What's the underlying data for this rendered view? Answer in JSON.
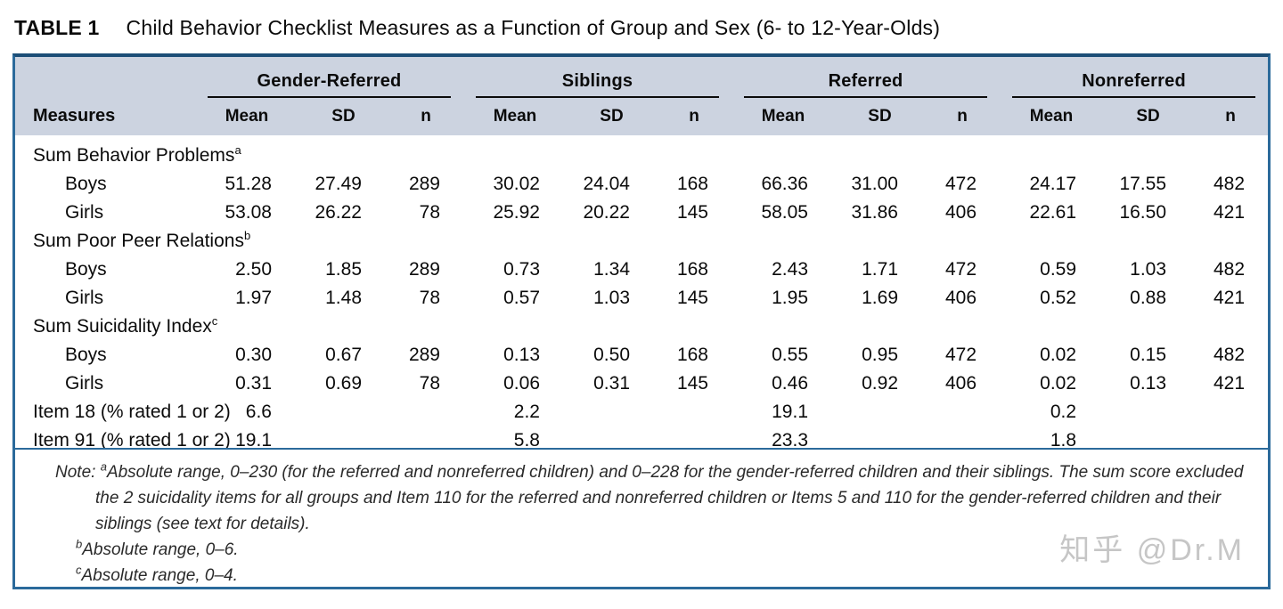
{
  "title": {
    "label": "TABLE 1",
    "text": "Child Behavior Checklist Measures as a Function of Group and Sex (6- to 12-Year-Olds)"
  },
  "table": {
    "measures_header": "Measures",
    "groups": [
      {
        "label": "Gender-Referred"
      },
      {
        "label": "Siblings"
      },
      {
        "label": "Referred"
      },
      {
        "label": "Nonreferred"
      }
    ],
    "stat_headers": [
      "Mean",
      "SD",
      "n"
    ],
    "rows": [
      {
        "label": "Sum Behavior Problems",
        "sup": "a",
        "type": "section"
      },
      {
        "label": "Boys",
        "type": "data",
        "values": [
          "51.28",
          "27.49",
          "289",
          "30.02",
          "24.04",
          "168",
          "66.36",
          "31.00",
          "472",
          "24.17",
          "17.55",
          "482"
        ]
      },
      {
        "label": "Girls",
        "type": "data",
        "values": [
          "53.08",
          "26.22",
          "78",
          "25.92",
          "20.22",
          "145",
          "58.05",
          "31.86",
          "406",
          "22.61",
          "16.50",
          "421"
        ]
      },
      {
        "label": "Sum Poor Peer Relations",
        "sup": "b",
        "type": "section"
      },
      {
        "label": "Boys",
        "type": "data",
        "values": [
          "2.50",
          "1.85",
          "289",
          "0.73",
          "1.34",
          "168",
          "2.43",
          "1.71",
          "472",
          "0.59",
          "1.03",
          "482"
        ]
      },
      {
        "label": "Girls",
        "type": "data",
        "values": [
          "1.97",
          "1.48",
          "78",
          "0.57",
          "1.03",
          "145",
          "1.95",
          "1.69",
          "406",
          "0.52",
          "0.88",
          "421"
        ]
      },
      {
        "label": "Sum Suicidality Index",
        "sup": "c",
        "type": "section"
      },
      {
        "label": "Boys",
        "type": "data",
        "values": [
          "0.30",
          "0.67",
          "289",
          "0.13",
          "0.50",
          "168",
          "0.55",
          "0.95",
          "472",
          "0.02",
          "0.15",
          "482"
        ]
      },
      {
        "label": "Girls",
        "type": "data",
        "values": [
          "0.31",
          "0.69",
          "78",
          "0.06",
          "0.31",
          "145",
          "0.46",
          "0.92",
          "406",
          "0.02",
          "0.13",
          "421"
        ]
      },
      {
        "label": "Item 18 (% rated 1 or 2)",
        "type": "item",
        "values": [
          "6.6",
          "",
          "",
          "2.2",
          "",
          "",
          "19.1",
          "",
          "",
          "0.2",
          "",
          ""
        ]
      },
      {
        "label": "Item 91 (% rated 1 or 2)",
        "type": "item",
        "values": [
          "19.1",
          "",
          "",
          "5.8",
          "",
          "",
          "23.3",
          "",
          "",
          "1.8",
          "",
          ""
        ]
      }
    ]
  },
  "notes": {
    "note_label": "Note:",
    "a_sup": "a",
    "a_text": "Absolute range, 0–230 (for the referred and nonreferred children) and 0–228 for the gender-referred children and their siblings. The sum score excluded the 2 suicidality items for all groups and Item 110 for the referred and nonreferred children or Items 5 and 110 for the gender-referred children and their siblings (see text for details).",
    "b_sup": "b",
    "b_text": "Absolute range, 0–6.",
    "c_sup": "c",
    "c_text": "Absolute range, 0–4."
  },
  "watermark": "知乎 @Dr.M",
  "colors": {
    "header_background": "#ccd3e0",
    "frame_border": "#2b6a9b",
    "text": "#0b0b0b",
    "watermark": "#c6c6c6"
  }
}
